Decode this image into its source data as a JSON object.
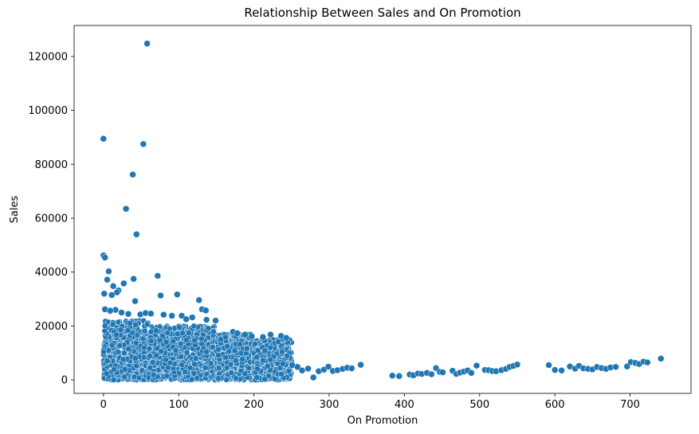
{
  "chart_data": {
    "type": "scatter",
    "title": "Relationship Between Sales and On Promotion",
    "xlabel": "On Promotion",
    "ylabel": "Sales",
    "xlim": [
      -39,
      781
    ],
    "ylim": [
      -5000,
      131500
    ],
    "xticks": [
      0,
      100,
      200,
      300,
      400,
      500,
      600,
      700
    ],
    "xtick_labels": [
      "0",
      "100",
      "200",
      "300",
      "400",
      "500",
      "600",
      "700"
    ],
    "yticks": [
      0,
      20000,
      40000,
      60000,
      80000,
      100000,
      120000
    ],
    "ytick_labels": [
      "0",
      "20000",
      "40000",
      "60000",
      "80000",
      "100000",
      "120000"
    ],
    "grid": false,
    "point_color": "#1f77b4",
    "dense_region": {
      "description_points": "dense cluster of points from x=0 to x=250, y mostly between 0 and 22000",
      "segments": [
        {
          "x_from": 0,
          "x_to": 60,
          "y_max": 22000
        },
        {
          "x_from": 60,
          "x_to": 150,
          "y_max": 20000
        },
        {
          "x_from": 150,
          "x_to": 200,
          "y_max": 17000
        },
        {
          "x_from": 200,
          "x_to": 250,
          "y_max": 15000
        }
      ]
    },
    "x": [
      0,
      58,
      53,
      39,
      30,
      44,
      0,
      2,
      7,
      5,
      13,
      1,
      20,
      27,
      11,
      18,
      16,
      9,
      42,
      72,
      98,
      76,
      40,
      127,
      131,
      136,
      104,
      110,
      149,
      2,
      9,
      24,
      33,
      49,
      56,
      63,
      80,
      91,
      118,
      137,
      172,
      178,
      188,
      197,
      212,
      222,
      236,
      243,
      251,
      258,
      264,
      272,
      279,
      286,
      293,
      299,
      305,
      311,
      318,
      324,
      330,
      342,
      384,
      393,
      407,
      412,
      418,
      423,
      430,
      436,
      442,
      447,
      451,
      464,
      469,
      474,
      479,
      484,
      489,
      496,
      507,
      512,
      517,
      522,
      529,
      535,
      540,
      545,
      550,
      592,
      600,
      609,
      620,
      627,
      632,
      638,
      644,
      650,
      656,
      662,
      668,
      674,
      681,
      696,
      701,
      707,
      712,
      718,
      723,
      741
    ],
    "y": [
      89500,
      124800,
      87500,
      76200,
      63500,
      54000,
      46200,
      45400,
      40300,
      37200,
      34800,
      32000,
      33200,
      35800,
      31500,
      32500,
      26000,
      25500,
      29200,
      38600,
      31700,
      31300,
      37500,
      29600,
      26200,
      25800,
      23800,
      22500,
      22000,
      26200,
      25700,
      25000,
      24500,
      24300,
      24800,
      24600,
      24200,
      23800,
      23200,
      22300,
      17800,
      17300,
      16800,
      16200,
      15900,
      16800,
      16300,
      15600,
      5500,
      4800,
      3500,
      4200,
      900,
      3200,
      3800,
      4900,
      3300,
      3600,
      4100,
      4500,
      4300,
      5600,
      1600,
      1400,
      2000,
      1700,
      2400,
      2200,
      2600,
      2100,
      4400,
      3000,
      2800,
      3400,
      2200,
      2700,
      3100,
      3500,
      2600,
      5300,
      3700,
      3600,
      3300,
      3200,
      3600,
      4100,
      4800,
      5200,
      5700,
      5500,
      3700,
      3500,
      5000,
      4200,
      5200,
      4300,
      4100,
      3900,
      4800,
      4400,
      4100,
      4600,
      4800,
      5000,
      6600,
      6300,
      5900,
      6800,
      6500,
      7900
    ]
  }
}
